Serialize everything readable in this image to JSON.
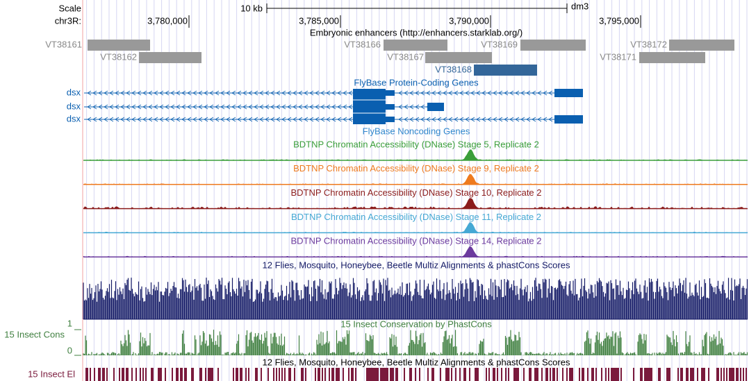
{
  "ruler": {
    "scale_label": "Scale",
    "chrom_label": "chr3R:",
    "scale_bar": "10 kb",
    "assembly": "dm3",
    "positions": [
      "3,780,000",
      "3,785,000",
      "3,790,000",
      "3,795,000"
    ]
  },
  "enhancers": {
    "title": "Embryonic enhancers (http://enhancers.starklab.org/)",
    "items": [
      "VT38161",
      "VT38162",
      "VT38166",
      "VT38167",
      "VT38169",
      "VT38168",
      "VT38172",
      "VT38171"
    ]
  },
  "genes": {
    "title": "FlyBase Protein-Coding Genes",
    "items": [
      "dsx",
      "dsx",
      "dsx"
    ],
    "color": "#0a5fb0"
  },
  "noncoding": {
    "title": "FlyBase Noncoding Genes"
  },
  "dnase": [
    {
      "title": "BDTNP Chromatin Accessibility (DNase) Stage 5, Replicate 2",
      "color": "#3a9e3a"
    },
    {
      "title": "BDTNP Chromatin Accessibility (DNase) Stage 9, Replicate 2",
      "color": "#ee7a1e"
    },
    {
      "title": "BDTNP Chromatin Accessibility (DNase) Stage 10, Replicate 2",
      "color": "#8b1c1c"
    },
    {
      "title": "BDTNP Chromatin Accessibility (DNase) Stage 11, Replicate 2",
      "color": "#45a8d4"
    },
    {
      "title": "BDTNP Chromatin Accessibility (DNase) Stage 14, Replicate 2",
      "color": "#6b3a9e"
    }
  ],
  "multiz": {
    "title": "12 Flies, Mosquito, Honeybee, Beetle Multiz Alignments & phastCons Scores",
    "color": "#141a66"
  },
  "cons": {
    "title": "15 Insect Conservation by PhastCons",
    "side_label": "15 Insect Cons",
    "axis_max": 1,
    "axis_min": 0,
    "color": "#3f7f3f"
  },
  "elements": {
    "title": "12 Flies, Mosquito, Honeybee, Beetle Multiz Alignments & phastCons Scores",
    "side_label": "15 Insect El",
    "color": "#7a1a3c"
  }
}
